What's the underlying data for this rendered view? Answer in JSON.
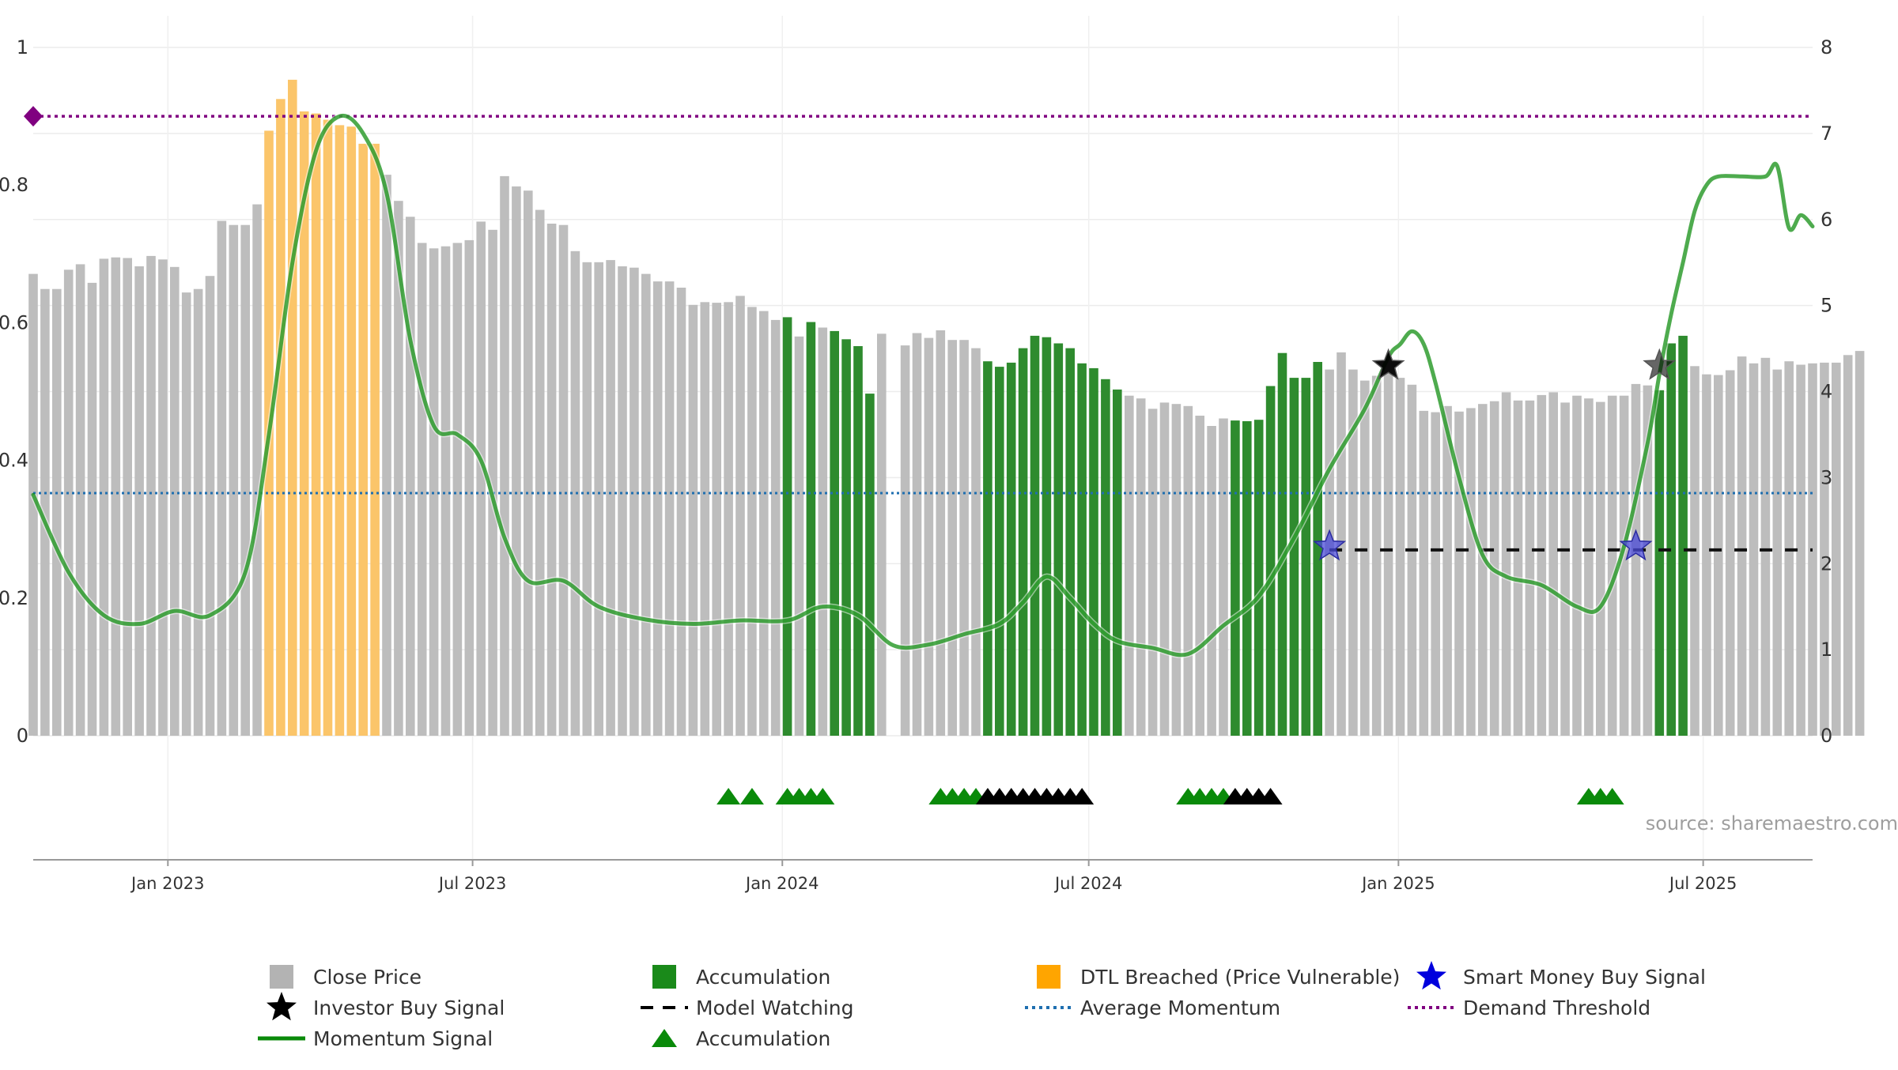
{
  "chart_data": {
    "type": "bar",
    "source_note": "source: sharemaestro.com",
    "y_left": {
      "ylim": [
        0,
        1
      ],
      "ticks": [
        "0",
        "0.2",
        "0.4",
        "0.6",
        "0.8",
        "1"
      ]
    },
    "y_right": {
      "ylim": [
        0,
        8
      ],
      "ticks": [
        "0",
        "1",
        "2",
        "3",
        "4",
        "5",
        "6",
        "7",
        "8"
      ]
    },
    "x_axis": {
      "range": [
        "2022-10-13",
        "2025-09-04"
      ],
      "ticks": [
        "Jan 2023",
        "Jul 2023",
        "Jan 2024",
        "Jul 2024",
        "Jan 2025",
        "Jul 2025"
      ],
      "tick_dates": [
        "2023-01-01",
        "2023-07-01",
        "2024-01-01",
        "2024-07-01",
        "2025-01-01",
        "2025-07-01"
      ]
    },
    "grid": true,
    "legend": {
      "placement": "bottom",
      "entries": [
        {
          "label": "Close Price",
          "symbol": "square",
          "color": "#b3b3b3"
        },
        {
          "label": "Accumulation",
          "symbol": "square",
          "color": "#1a8a1a"
        },
        {
          "label": "DTL Breached (Price Vulnerable)",
          "symbol": "square",
          "color": "#ffa500"
        },
        {
          "label": "Smart Money Buy Signal",
          "symbol": "star",
          "color": "#0000dd"
        },
        {
          "label": "Investor Buy Signal",
          "symbol": "star",
          "color": "#000000"
        },
        {
          "label": "Model Watching",
          "symbol": "dash",
          "color": "#000000"
        },
        {
          "label": "Average Momentum",
          "symbol": "dotted",
          "color": "#1f6fb0"
        },
        {
          "label": "Demand Threshold",
          "symbol": "dotted",
          "color": "#800080"
        },
        {
          "label": "Momentum Signal",
          "symbol": "line",
          "color": "#0a8a0a"
        },
        {
          "label": "Accumulation",
          "symbol": "triangle",
          "color": "#0a8a0a"
        }
      ]
    },
    "colors": {
      "close": "#bdbdbd",
      "accumulation": "#2e8b2e",
      "dtl": "#fbc56a",
      "momentum": "#0a8a0a",
      "avg_momentum": "#1f6fb0",
      "demand": "#800080",
      "smart_money": "#4a4ad8",
      "investor": "#000000"
    },
    "bars": {
      "start": "2022-10-13",
      "step_days": 7,
      "close": [
        0.671,
        0.649,
        0.649,
        0.677,
        0.685,
        0.658,
        0.693,
        0.695,
        0.694,
        0.682,
        0.697,
        0.692,
        0.681,
        0.644,
        0.649,
        0.668,
        0.748,
        0.742,
        0.742,
        0.772,
        0.879,
        0.925,
        0.953,
        0.907,
        0.904,
        0.895,
        0.887,
        0.885,
        0.86,
        0.86,
        0.815,
        0.777,
        0.754,
        0.716,
        0.708,
        0.711,
        0.716,
        0.72,
        0.747,
        0.735,
        0.813,
        0.798,
        0.792,
        0.764,
        0.744,
        0.742,
        0.704,
        0.688,
        0.688,
        0.691,
        0.682,
        0.68,
        0.671,
        0.66,
        0.66,
        0.651,
        0.626,
        0.63,
        0.629,
        0.63,
        0.639,
        0.623,
        0.617,
        0.604,
        0.608,
        0.58,
        0.601,
        0.593,
        0.588,
        0.576,
        0.566,
        0.497,
        0.584,
        0.0,
        0.567,
        0.585,
        0.578,
        0.589,
        0.575,
        0.575,
        0.563,
        0.544,
        0.536,
        0.542,
        0.563,
        0.581,
        0.579,
        0.57,
        0.563,
        0.541,
        0.534,
        0.518,
        0.503,
        0.494,
        0.49,
        0.475,
        0.484,
        0.482,
        0.479,
        0.465,
        0.45,
        0.461,
        0.458,
        0.457,
        0.459,
        0.508,
        0.556,
        0.52,
        0.52,
        0.543,
        0.532,
        0.557,
        0.532,
        0.516,
        0.523,
        0.527,
        0.52,
        0.51,
        0.472,
        0.47,
        0.479,
        0.471,
        0.476,
        0.482,
        0.486,
        0.499,
        0.487,
        0.487,
        0.495,
        0.499,
        0.484,
        0.494,
        0.49,
        0.485,
        0.494,
        0.494,
        0.511,
        0.509,
        0.502,
        0.57,
        0.581,
        0.537,
        0.525,
        0.524,
        0.531,
        0.551,
        0.541,
        0.549,
        0.532,
        0.544,
        0.539,
        0.541,
        0.542,
        0.542,
        0.553,
        0.559
      ],
      "state": [
        "c",
        "c",
        "c",
        "c",
        "c",
        "c",
        "c",
        "c",
        "c",
        "c",
        "c",
        "c",
        "c",
        "c",
        "c",
        "c",
        "c",
        "c",
        "c",
        "c",
        "d",
        "d",
        "d",
        "d",
        "d",
        "d",
        "d",
        "d",
        "d",
        "d",
        "c",
        "c",
        "c",
        "c",
        "c",
        "c",
        "c",
        "c",
        "c",
        "c",
        "c",
        "c",
        "c",
        "c",
        "c",
        "c",
        "c",
        "c",
        "c",
        "c",
        "c",
        "c",
        "c",
        "c",
        "c",
        "c",
        "c",
        "c",
        "c",
        "c",
        "c",
        "c",
        "c",
        "c",
        "a",
        "c",
        "a",
        "c",
        "a",
        "a",
        "a",
        "a",
        "c",
        "c",
        "c",
        "c",
        "c",
        "c",
        "c",
        "c",
        "c",
        "a",
        "a",
        "a",
        "a",
        "a",
        "a",
        "a",
        "a",
        "a",
        "a",
        "a",
        "a",
        "c",
        "c",
        "c",
        "c",
        "c",
        "c",
        "c",
        "c",
        "c",
        "a",
        "a",
        "a",
        "a",
        "a",
        "a",
        "a",
        "a",
        "c",
        "c",
        "c",
        "c",
        "c",
        "c",
        "c",
        "c",
        "c",
        "c",
        "c",
        "c",
        "c",
        "c",
        "c",
        "c",
        "c",
        "c",
        "c",
        "c",
        "c",
        "c",
        "c",
        "c",
        "c",
        "c",
        "c",
        "c",
        "a",
        "a",
        "a",
        "c",
        "c",
        "c",
        "c",
        "c",
        "c",
        "c",
        "c",
        "c",
        "c",
        "c",
        "c",
        "c",
        "c",
        "c",
        "c",
        "c",
        "c",
        "c"
      ]
    },
    "momentum": {
      "x": [
        "2022-10-13",
        "2022-11-03",
        "2022-11-24",
        "2022-12-15",
        "2023-01-05",
        "2023-01-26",
        "2023-02-16",
        "2023-03-02",
        "2023-03-16",
        "2023-03-30",
        "2023-04-13",
        "2023-04-27",
        "2023-05-11",
        "2023-05-25",
        "2023-06-08",
        "2023-06-22",
        "2023-07-06",
        "2023-07-20",
        "2023-08-03",
        "2023-08-24",
        "2023-09-14",
        "2023-10-12",
        "2023-11-09",
        "2023-12-07",
        "2024-01-04",
        "2024-01-25",
        "2024-02-15",
        "2024-03-07",
        "2024-03-28",
        "2024-04-18",
        "2024-05-09",
        "2024-05-23",
        "2024-06-06",
        "2024-06-20",
        "2024-07-04",
        "2024-07-18",
        "2024-08-08",
        "2024-08-29",
        "2024-09-19",
        "2024-10-10",
        "2024-10-31",
        "2024-11-21",
        "2024-12-12",
        "2024-12-26",
        "2025-01-02",
        "2025-01-09",
        "2025-01-16",
        "2025-01-23",
        "2025-02-06",
        "2025-02-20",
        "2025-03-06",
        "2025-03-27",
        "2025-04-17",
        "2025-05-01",
        "2025-05-15",
        "2025-05-29",
        "2025-06-05",
        "2025-06-12",
        "2025-06-19",
        "2025-06-26",
        "2025-07-03",
        "2025-07-10",
        "2025-07-24",
        "2025-08-07",
        "2025-08-14",
        "2025-08-21",
        "2025-08-28",
        "2025-09-04"
      ],
      "y": [
        2.8,
        1.9,
        1.4,
        1.3,
        1.45,
        1.4,
        1.9,
        3.5,
        5.5,
        6.8,
        7.2,
        7.0,
        6.3,
        4.6,
        3.6,
        3.5,
        3.2,
        2.3,
        1.8,
        1.8,
        1.5,
        1.35,
        1.3,
        1.34,
        1.34,
        1.5,
        1.4,
        1.05,
        1.06,
        1.18,
        1.3,
        1.55,
        1.85,
        1.6,
        1.3,
        1.1,
        1.02,
        0.95,
        1.28,
        1.62,
        2.3,
        3.1,
        3.8,
        4.4,
        4.55,
        4.7,
        4.55,
        4.1,
        3.0,
        2.1,
        1.85,
        1.75,
        1.5,
        1.5,
        2.2,
        3.4,
        4.2,
        4.9,
        5.5,
        6.1,
        6.4,
        6.5,
        6.5,
        6.5,
        6.62,
        5.9,
        6.05,
        5.92
      ]
    },
    "avg_momentum": 2.82,
    "demand_threshold": 7.2,
    "model_watching": {
      "x_start": "2024-11-21",
      "x_end": "2025-09-04",
      "y": 2.16
    },
    "smart_money_signals": [
      {
        "x": "2024-11-21",
        "y": 2.2
      },
      {
        "x": "2025-05-22",
        "y": 2.2
      }
    ],
    "investor_signals": [
      {
        "x": "2024-12-26",
        "y": 4.3
      },
      {
        "x": "2025-06-05",
        "y": 4.3
      }
    ],
    "triangles": [
      {
        "x": "2023-11-30",
        "color": "green"
      },
      {
        "x": "2023-12-14",
        "color": "green"
      },
      {
        "x": "2024-01-04",
        "color": "green"
      },
      {
        "x": "2024-01-11",
        "color": "green"
      },
      {
        "x": "2024-01-18",
        "color": "green"
      },
      {
        "x": "2024-01-25",
        "color": "green"
      },
      {
        "x": "2024-04-04",
        "color": "green"
      },
      {
        "x": "2024-04-11",
        "color": "green"
      },
      {
        "x": "2024-04-18",
        "color": "green"
      },
      {
        "x": "2024-04-25",
        "color": "green"
      },
      {
        "x": "2024-05-02",
        "color": "black"
      },
      {
        "x": "2024-05-09",
        "color": "black"
      },
      {
        "x": "2024-05-16",
        "color": "black"
      },
      {
        "x": "2024-05-23",
        "color": "black"
      },
      {
        "x": "2024-05-30",
        "color": "black"
      },
      {
        "x": "2024-06-06",
        "color": "black"
      },
      {
        "x": "2024-06-13",
        "color": "black"
      },
      {
        "x": "2024-06-20",
        "color": "black"
      },
      {
        "x": "2024-06-27",
        "color": "black"
      },
      {
        "x": "2024-08-29",
        "color": "green"
      },
      {
        "x": "2024-09-05",
        "color": "green"
      },
      {
        "x": "2024-09-12",
        "color": "green"
      },
      {
        "x": "2024-09-19",
        "color": "green"
      },
      {
        "x": "2024-09-26",
        "color": "black"
      },
      {
        "x": "2024-10-03",
        "color": "black"
      },
      {
        "x": "2024-10-10",
        "color": "black"
      },
      {
        "x": "2024-10-17",
        "color": "black"
      },
      {
        "x": "2025-04-24",
        "color": "green"
      },
      {
        "x": "2025-05-01",
        "color": "green"
      },
      {
        "x": "2025-05-08",
        "color": "green"
      }
    ]
  }
}
